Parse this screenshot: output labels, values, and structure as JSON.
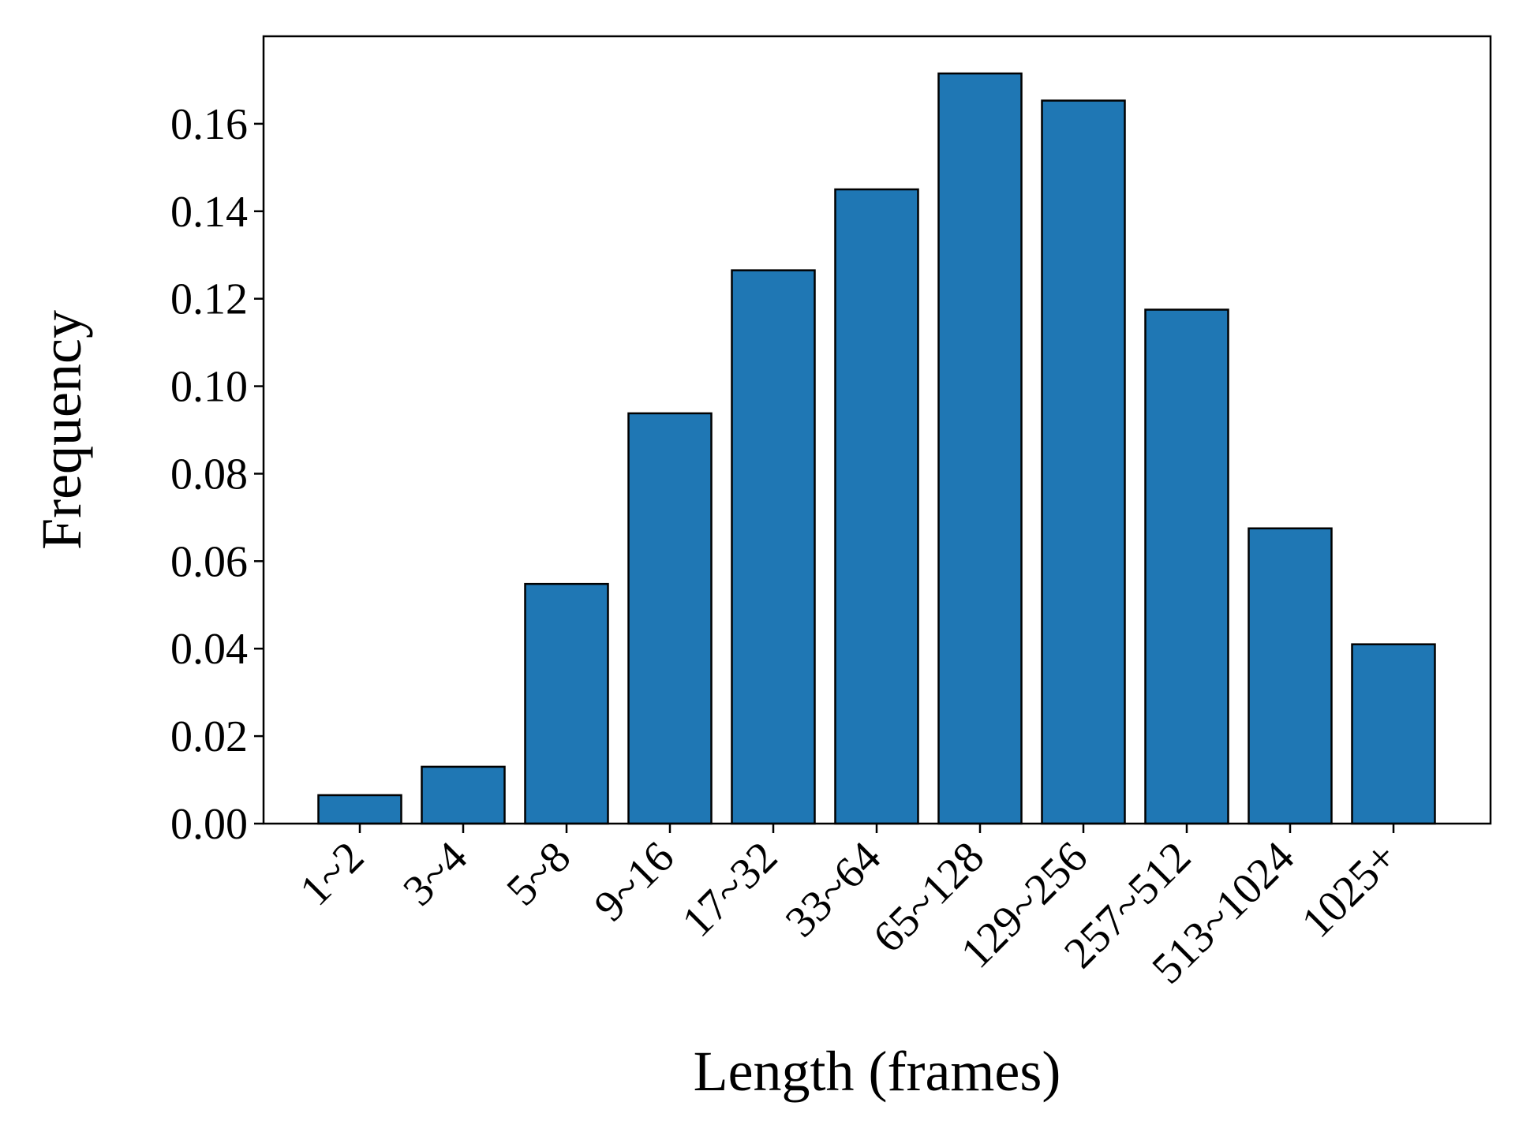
{
  "chart_data": {
    "type": "bar",
    "categories": [
      "1~2",
      "3~4",
      "5~8",
      "9~16",
      "17~32",
      "33~64",
      "65~128",
      "129~256",
      "257~512",
      "513~1024",
      "1025+"
    ],
    "values": [
      0.0065,
      0.013,
      0.0548,
      0.0938,
      0.1265,
      0.145,
      0.1715,
      0.1653,
      0.1175,
      0.0675,
      0.041
    ],
    "xlabel": "Length (frames)",
    "ylabel": "Frequency",
    "ylim": [
      0,
      0.18
    ],
    "yticks": [
      "0.00",
      "0.02",
      "0.04",
      "0.06",
      "0.08",
      "0.10",
      "0.12",
      "0.14",
      "0.16"
    ],
    "grid": false,
    "colors": {
      "bar_fill": "#1f77b4",
      "bar_edge": "#000000",
      "axis": "#000000"
    }
  }
}
